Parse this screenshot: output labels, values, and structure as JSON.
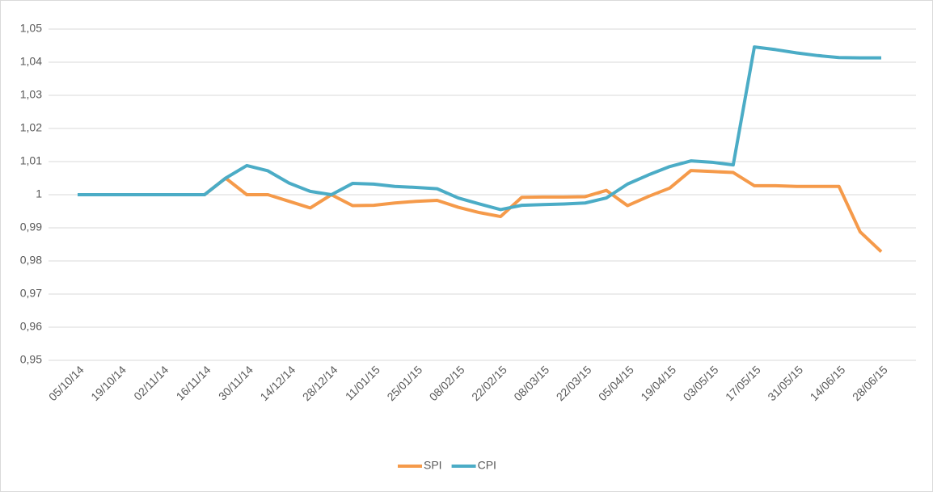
{
  "chart_data": {
    "type": "line",
    "categories": [
      "05/10/14",
      null,
      "19/10/14",
      null,
      "02/11/14",
      null,
      "16/11/14",
      null,
      "30/11/14",
      null,
      "14/12/14",
      null,
      "28/12/14",
      null,
      "11/01/15",
      null,
      "25/01/15",
      null,
      "08/02/15",
      null,
      "22/02/15",
      null,
      "08/03/15",
      null,
      "22/03/15",
      null,
      "05/04/15",
      null,
      "19/04/15",
      null,
      "03/05/15",
      null,
      "17/05/15",
      null,
      "31/05/15",
      null,
      "14/06/15",
      null,
      "28/06/15"
    ],
    "series": [
      {
        "name": "SPI",
        "color": "#f59a4a",
        "values": [
          1,
          1,
          1,
          1,
          1,
          1,
          1,
          1.005,
          1.0,
          1.0,
          0.998,
          0.996,
          1.0,
          0.9967,
          0.9968,
          0.9975,
          0.998,
          0.9983,
          0.9962,
          0.9946,
          0.9934,
          0.9992,
          0.9993,
          0.9993,
          0.9994,
          1.0013,
          0.9967,
          0.9995,
          1.002,
          1.0073,
          1.007,
          1.0067,
          1.0027,
          1.0027,
          1.0025,
          1.0025,
          1.0025,
          0.9888,
          0.9828
        ]
      },
      {
        "name": "CPI",
        "color": "#4bacc6",
        "values": [
          1,
          1,
          1,
          1,
          1,
          1,
          1,
          1.005,
          1.0088,
          1.0072,
          1.0035,
          1.001,
          1.0,
          1.0034,
          1.0032,
          1.0025,
          1.0022,
          1.0018,
          0.999,
          0.9972,
          0.9955,
          0.9968,
          0.997,
          0.9972,
          0.9975,
          0.999,
          1.0032,
          1.006,
          1.0085,
          1.0102,
          1.0098,
          1.009,
          1.0446,
          1.0438,
          1.0428,
          1.042,
          1.0414,
          1.0413,
          1.0413
        ]
      }
    ],
    "ylim": [
      0.95,
      1.05
    ],
    "yticks": [
      {
        "value": 0.95,
        "label": "0,95"
      },
      {
        "value": 0.96,
        "label": "0,96"
      },
      {
        "value": 0.97,
        "label": "0,97"
      },
      {
        "value": 0.98,
        "label": "0,98"
      },
      {
        "value": 0.99,
        "label": "0,99"
      },
      1,
      {
        "value": 1.01,
        "label": "1,01"
      },
      {
        "value": 1.02,
        "label": "1,02"
      },
      {
        "value": 1.03,
        "label": "1,03"
      },
      {
        "value": 1.04,
        "label": "1,04"
      },
      {
        "value": 1.05,
        "label": "1,05"
      }
    ],
    "grid": true,
    "legend": "bottom"
  }
}
